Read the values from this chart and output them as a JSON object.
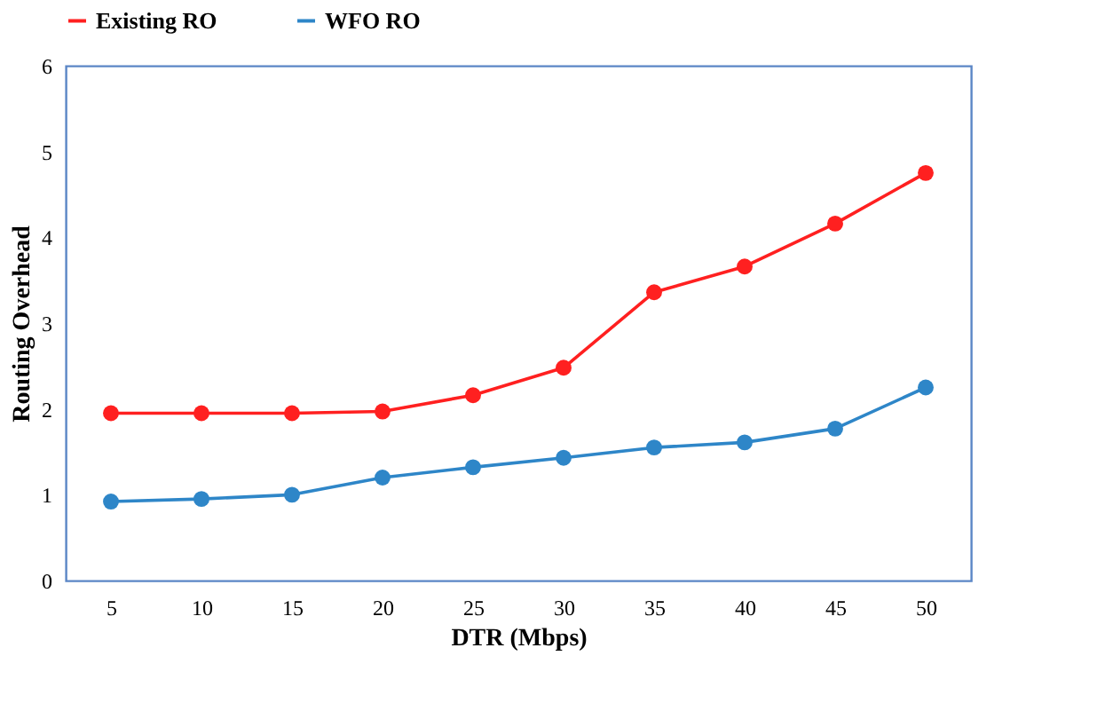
{
  "chart_data": {
    "type": "line",
    "xlabel": "DTR (Mbps)",
    "ylabel": "Routing  Overhead",
    "categories": [
      "5",
      "10",
      "15",
      "20",
      "25",
      "30",
      "35",
      "40",
      "45",
      "50"
    ],
    "series": [
      {
        "name": "Existing RO",
        "color": "#ff2020",
        "values": [
          1.95,
          1.95,
          1.95,
          1.97,
          2.16,
          2.48,
          3.36,
          3.66,
          4.16,
          4.75
        ]
      },
      {
        "name": "WFO RO",
        "color": "#2e86c8",
        "values": [
          0.92,
          0.95,
          1.0,
          1.2,
          1.32,
          1.43,
          1.55,
          1.61,
          1.77,
          2.25
        ]
      }
    ],
    "ylim": [
      0,
      6
    ],
    "yticks": [
      0,
      1,
      2,
      3,
      4,
      5,
      6
    ],
    "grid": false,
    "legend": "top",
    "marker": "circle",
    "line_style": "solid"
  }
}
